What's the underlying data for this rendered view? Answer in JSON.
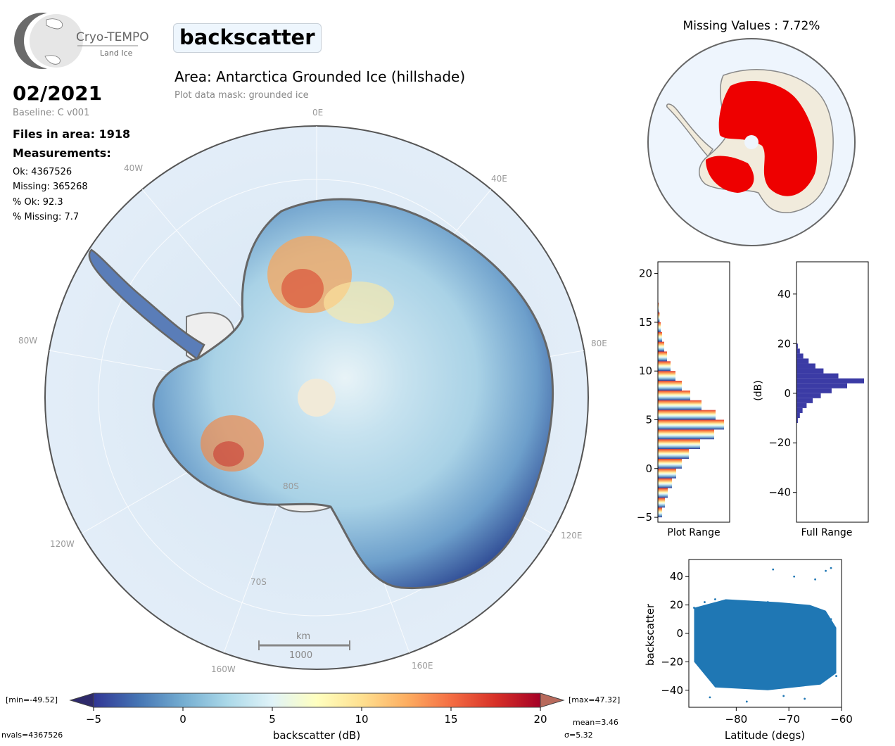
{
  "logo": {
    "name": "Cryo-TEMPO",
    "subtitle": "Land Ice"
  },
  "header": {
    "parameter": "backscatter",
    "area_title": "Area: Antarctica Grounded Ice (hillshade)",
    "mask_note": "Plot data mask: grounded ice"
  },
  "info": {
    "date": "02/2021",
    "baseline": "Baseline: C v001",
    "files": "Files in area: 1918",
    "measurements_heading": "Measurements:",
    "ok": "Ok: 4367526",
    "missing": "Missing: 365268",
    "pct_ok": "% Ok: 92.3",
    "pct_missing": "% Missing: 7.7"
  },
  "map": {
    "lon_labels": [
      "0E",
      "40E",
      "80E",
      "120E",
      "160E",
      "160W",
      "120W",
      "80W",
      "40W"
    ],
    "lat_labels": [
      "70S",
      "80S"
    ],
    "scale_unit": "km",
    "scale_value": "1000"
  },
  "missing_map": {
    "title": "Missing Values : 7.72%"
  },
  "colorbar": {
    "min_label": "[min=-49.52]",
    "max_label": "[max=47.32]",
    "label": "backscatter (dB)",
    "ticks": [
      "−5",
      "0",
      "5",
      "10",
      "15",
      "20"
    ],
    "nvals": "nvals=4367526",
    "mean": "mean=3.46",
    "sigma": "σ=5.32",
    "colors": [
      "#313695",
      "#4575b4",
      "#74add1",
      "#abd9e9",
      "#e0f3f8",
      "#ffffbf",
      "#fee090",
      "#fdae61",
      "#f46d43",
      "#d73027",
      "#a50026"
    ]
  },
  "chart_data": [
    {
      "type": "bar",
      "orientation": "horizontal",
      "xlabel": "Plot Range",
      "ylim": [
        -5.5,
        21.2
      ],
      "y_ticks": [
        "20",
        "15",
        "10",
        "5",
        "0",
        "−5"
      ],
      "bins": [
        -5,
        -4,
        -3,
        -2,
        -1,
        0,
        1,
        2,
        3,
        4,
        5,
        6,
        7,
        8,
        9,
        10,
        11,
        12,
        13,
        14,
        15,
        16,
        17
      ],
      "values": [
        0.06,
        0.1,
        0.14,
        0.2,
        0.26,
        0.34,
        0.44,
        0.6,
        0.8,
        0.94,
        0.82,
        0.62,
        0.46,
        0.34,
        0.25,
        0.18,
        0.13,
        0.09,
        0.06,
        0.04,
        0.025,
        0.012,
        0.004
      ]
    },
    {
      "type": "bar",
      "orientation": "horizontal",
      "xlabel": "Full Range",
      "ylabel": "(dB)",
      "ylim": [
        -52,
        53
      ],
      "y_ticks": [
        "40",
        "20",
        "0",
        "−20",
        "−40"
      ],
      "color": "#3b3ba5",
      "bins": [
        -12,
        -10,
        -8,
        -6,
        -4,
        -2,
        0,
        2,
        4,
        6,
        8,
        10,
        12,
        14,
        16,
        18
      ],
      "values": [
        0.02,
        0.05,
        0.09,
        0.15,
        0.24,
        0.36,
        0.52,
        0.75,
        1.0,
        0.62,
        0.4,
        0.28,
        0.18,
        0.1,
        0.05,
        0.02
      ]
    },
    {
      "type": "scatter",
      "xlabel": "Latitude (degs)",
      "ylabel": "backscatter",
      "xlim": [
        -89,
        -60
      ],
      "ylim": [
        -52,
        52
      ],
      "x_ticks": [
        "−80",
        "−70",
        "−60"
      ],
      "y_ticks": [
        "40",
        "20",
        "0",
        "−20",
        "−40"
      ],
      "color": "#1f77b4",
      "x": [
        -88,
        -86,
        -84,
        -82,
        -80,
        -78,
        -76,
        -74,
        -72,
        -70,
        -68,
        -66,
        -64,
        -62,
        -61,
        -73,
        -69,
        -65,
        -63,
        -62,
        -85,
        -78,
        -71,
        -67
      ],
      "y": [
        18,
        22,
        24,
        23,
        22,
        21,
        20,
        22,
        19,
        18,
        17,
        19,
        16,
        10,
        -30,
        45,
        40,
        38,
        44,
        46,
        -45,
        -48,
        -44,
        -46
      ]
    }
  ]
}
